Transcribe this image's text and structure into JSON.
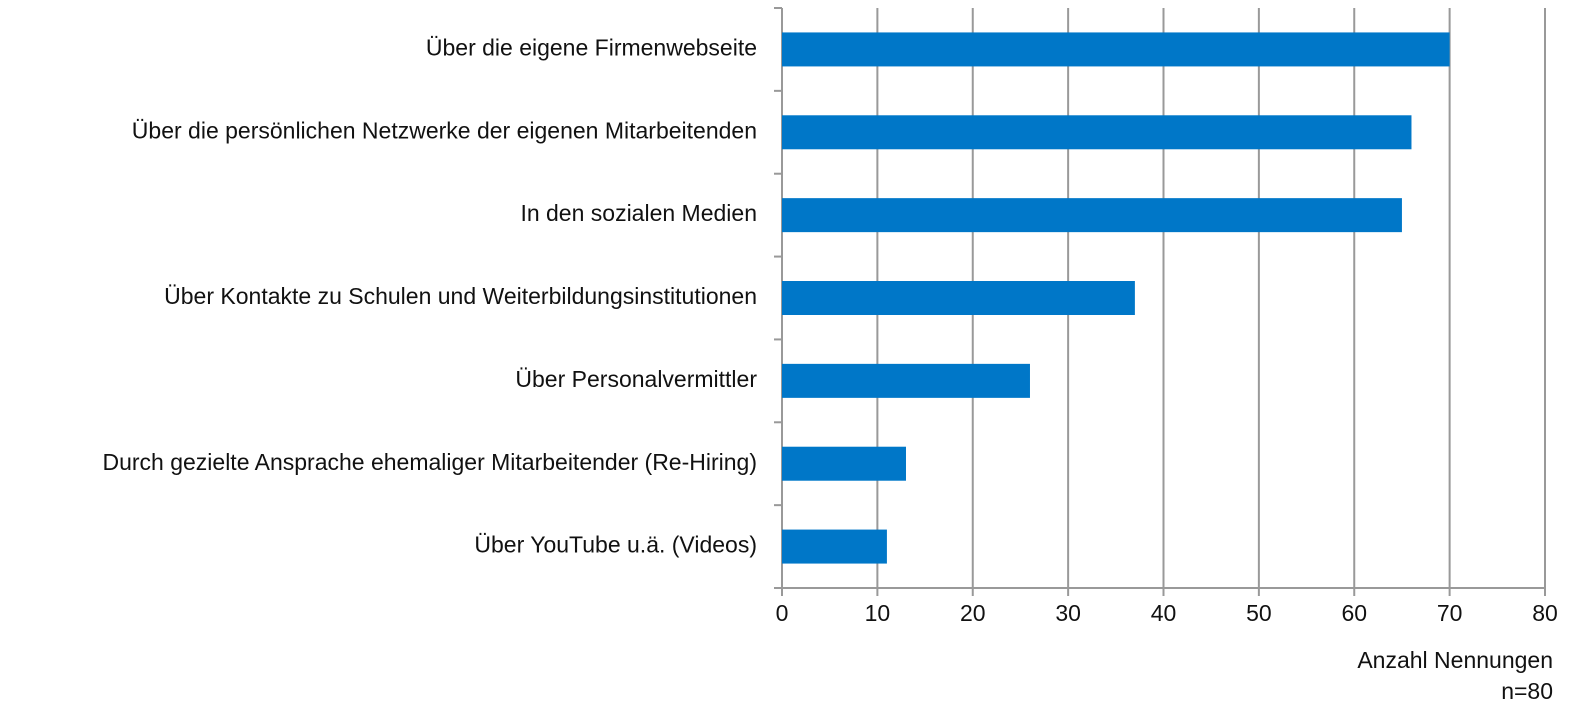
{
  "chart_data": {
    "type": "bar",
    "orientation": "horizontal",
    "categories": [
      "Über die eigene Firmenwebseite",
      "Über die persönlichen Netzwerke der eigenen Mitarbeitenden",
      "In den sozialen Medien",
      "Über Kontakte zu Schulen und Weiterbildungsinstitutionen",
      "Über Personalvermittler",
      "Durch gezielte Ansprache ehemaliger Mitarbeitender (Re-Hiring)",
      "Über YouTube u.ä. (Videos)"
    ],
    "values": [
      70,
      66,
      65,
      37,
      26,
      13,
      11
    ],
    "color": "#0077c8",
    "xlim": [
      0,
      80
    ],
    "xticks": [
      0,
      10,
      20,
      30,
      40,
      50,
      60,
      70,
      80
    ],
    "x_label": "Anzahl Nennungen",
    "note": "n=80",
    "grid": true
  }
}
